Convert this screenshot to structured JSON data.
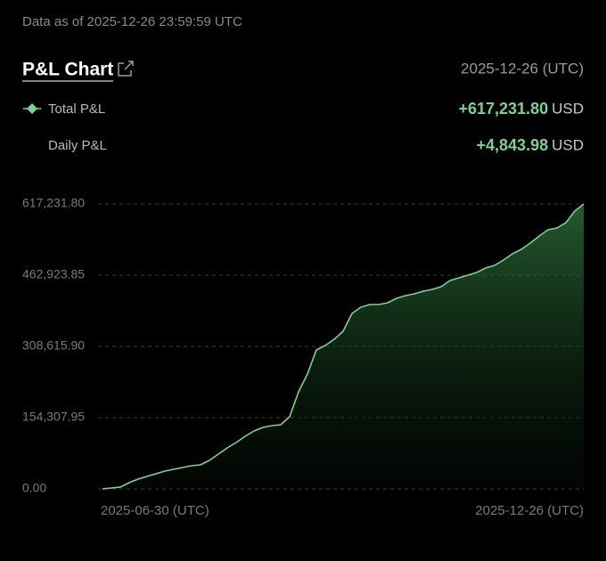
{
  "chart_data": {
    "type": "area",
    "subtitle": "Data as of 2025-12-26 23:59:59 UTC",
    "title": "P&L Chart",
    "date_label": "2025-12-26 (UTC)",
    "summary": [
      {
        "value": "+617,231.80",
        "unit": "USD"
      },
      {
        "name": "Daily P&L",
        "value": "+4,843.98",
        "unit": "USD"
      }
    ],
    "categories": [
      "2025-06-30 (UTC)",
      null,
      null,
      null,
      null,
      null,
      null,
      null,
      null,
      null,
      null,
      null,
      null,
      null,
      null,
      null,
      null,
      null,
      null,
      null,
      null,
      null,
      null,
      null,
      null,
      null,
      null,
      null,
      null,
      null,
      null,
      null,
      null,
      null,
      null,
      null,
      null,
      null,
      null,
      null,
      null,
      null,
      null,
      null,
      null,
      null,
      null,
      null,
      null,
      null,
      null,
      null,
      null,
      null,
      "2025-12-26 (UTC)"
    ],
    "series": [
      {
        "name": "Total P&L",
        "color": "#7ed28f",
        "values": [
          0,
          1900,
          3900,
          13500,
          21200,
          27000,
          32800,
          38600,
          42400,
          46300,
          50200,
          52100,
          61700,
          75200,
          88700,
          100300,
          113800,
          125400,
          133100,
          137000,
          138900,
          156200,
          210300,
          248800,
          300900,
          310600,
          324100,
          341400,
          380000,
          393500,
          399300,
          399300,
          403200,
          412800,
          418600,
          422500,
          428200,
          432100,
          437900,
          451400,
          457200,
          463000,
          468700,
          478400,
          484200,
          495800,
          509300,
          518900,
          532400,
          547800,
          561300,
          565200,
          576800,
          601800,
          617231.8
        ]
      }
    ],
    "ylim": [
      0,
      617231.8
    ],
    "yticks": [
      {
        "value": 0,
        "label": "0.00"
      },
      {
        "value": 154307.95,
        "label": "154,307.95"
      },
      {
        "value": 308615.9,
        "label": "308,615.90"
      },
      {
        "value": 462923.85,
        "label": "462,923.85"
      },
      {
        "value": 617231.8,
        "label": "617,231.80"
      }
    ],
    "grid": true
  }
}
